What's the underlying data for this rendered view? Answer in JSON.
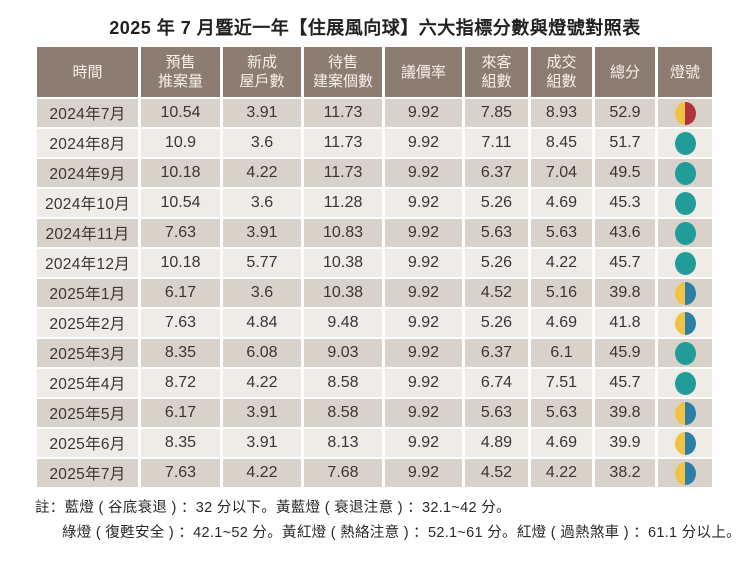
{
  "title": "2025 年 7 月暨近一年【住展風向球】六大指標分數與燈號對照表",
  "chart_data": {
    "type": "table",
    "title": "2025 年 7 月暨近一年【住展風向球】六大指標分數與燈號對照表",
    "columns": [
      {
        "label": "時間",
        "lines": [
          "時間"
        ]
      },
      {
        "label": "預售推案量",
        "lines": [
          "預售",
          "推案量"
        ]
      },
      {
        "label": "新成屋戶數",
        "lines": [
          "新成",
          "屋戶數"
        ]
      },
      {
        "label": "待售建案個數",
        "lines": [
          "待售",
          "建案個數"
        ]
      },
      {
        "label": "議價率",
        "lines": [
          "議價率"
        ]
      },
      {
        "label": "來客組數",
        "lines": [
          "來客",
          "組數"
        ]
      },
      {
        "label": "成交組數",
        "lines": [
          "成交",
          "組數"
        ]
      },
      {
        "label": "總分",
        "lines": [
          "總分"
        ]
      },
      {
        "label": "燈號",
        "lines": [
          "燈號"
        ]
      }
    ],
    "rows": [
      {
        "time": "2024年7月",
        "values": [
          "10.54",
          "3.91",
          "11.73",
          "9.92",
          "7.85",
          "8.93",
          "52.9"
        ],
        "light": "yellow-red",
        "light_label": "黃紅燈"
      },
      {
        "time": "2024年8月",
        "values": [
          "10.9",
          "3.6",
          "11.73",
          "9.92",
          "7.11",
          "8.45",
          "51.7"
        ],
        "light": "green",
        "light_label": "綠燈"
      },
      {
        "time": "2024年9月",
        "values": [
          "10.18",
          "4.22",
          "11.73",
          "9.92",
          "6.37",
          "7.04",
          "49.5"
        ],
        "light": "green",
        "light_label": "綠燈"
      },
      {
        "time": "2024年10月",
        "values": [
          "10.54",
          "3.6",
          "11.28",
          "9.92",
          "5.26",
          "4.69",
          "45.3"
        ],
        "light": "green",
        "light_label": "綠燈"
      },
      {
        "time": "2024年11月",
        "values": [
          "7.63",
          "3.91",
          "10.83",
          "9.92",
          "5.63",
          "5.63",
          "43.6"
        ],
        "light": "green",
        "light_label": "綠燈"
      },
      {
        "time": "2024年12月",
        "values": [
          "10.18",
          "5.77",
          "10.38",
          "9.92",
          "5.26",
          "4.22",
          "45.7"
        ],
        "light": "green",
        "light_label": "綠燈"
      },
      {
        "time": "2025年1月",
        "values": [
          "6.17",
          "3.6",
          "10.38",
          "9.92",
          "4.52",
          "5.16",
          "39.8"
        ],
        "light": "yellow-blue",
        "light_label": "黃藍燈"
      },
      {
        "time": "2025年2月",
        "values": [
          "7.63",
          "4.84",
          "9.48",
          "9.92",
          "5.26",
          "4.69",
          "41.8"
        ],
        "light": "yellow-blue",
        "light_label": "黃藍燈"
      },
      {
        "time": "2025年3月",
        "values": [
          "8.35",
          "6.08",
          "9.03",
          "9.92",
          "6.37",
          "6.1",
          "45.9"
        ],
        "light": "green",
        "light_label": "綠燈"
      },
      {
        "time": "2025年4月",
        "values": [
          "8.72",
          "4.22",
          "8.58",
          "9.92",
          "6.74",
          "7.51",
          "45.7"
        ],
        "light": "green",
        "light_label": "綠燈"
      },
      {
        "time": "2025年5月",
        "values": [
          "6.17",
          "3.91",
          "8.58",
          "9.92",
          "5.63",
          "5.63",
          "39.8"
        ],
        "light": "yellow-blue",
        "light_label": "黃藍燈"
      },
      {
        "time": "2025年6月",
        "values": [
          "8.35",
          "3.91",
          "8.13",
          "9.92",
          "4.89",
          "4.69",
          "39.9"
        ],
        "light": "yellow-blue",
        "light_label": "黃藍燈"
      },
      {
        "time": "2025年7月",
        "values": [
          "7.63",
          "4.22",
          "7.68",
          "9.92",
          "4.52",
          "4.22",
          "38.2"
        ],
        "light": "yellow-blue",
        "light_label": "黃藍燈"
      }
    ],
    "legend_notes": [
      "註：藍燈 ( 谷底衰退 ) ：32 分以下。黃藍燈 ( 衰退注意 ) ：32.1~42 分。",
      "綠燈 ( 復甦安全 ) ：42.1~52 分。黃紅燈 ( 熱絡注意 ) ：52.1~61 分。紅燈 ( 過熱煞車 ) ：61.1 分以上。"
    ]
  },
  "colors": {
    "header_bg": "#8c7c71",
    "header_text": "#f7f1ea",
    "row_odd_bg": "#d8d2cb",
    "row_even_bg": "#efece7",
    "cell_text": "#3a3633",
    "light_green": "#229c99",
    "light_yellow": "#f2c244",
    "light_red": "#b0343b",
    "light_blue": "#2b7fa6"
  }
}
